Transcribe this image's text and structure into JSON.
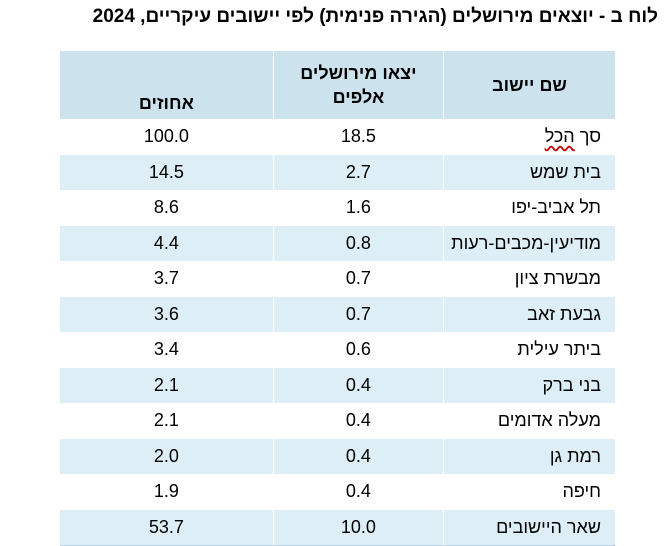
{
  "title": "לוח ב - יוצאים מירושלים (הגירה פנימית) לפי יישובים עיקריים, 2024",
  "table": {
    "headers": {
      "name": "שם יישוב",
      "thousands_line1": "יצאו מירושלים",
      "thousands_line2": "אלפים",
      "percent": "אחוזים"
    },
    "total_row": {
      "name_prefix": "סך",
      "name_sum": "הכל",
      "thousands": "18.5",
      "percent": "100.0"
    },
    "rows": [
      {
        "name": "בית שמש",
        "thousands": "2.7",
        "percent": "14.5"
      },
      {
        "name": "תל אביב-יפו",
        "thousands": "1.6",
        "percent": "8.6"
      },
      {
        "name": "מודיעין-מכבים-רעות",
        "thousands": "0.8",
        "percent": "4.4"
      },
      {
        "name": "מבשרת ציון",
        "thousands": "0.7",
        "percent": "3.7"
      },
      {
        "name": "גבעת זאב",
        "thousands": "0.7",
        "percent": "3.6"
      },
      {
        "name": "ביתר עילית",
        "thousands": "0.6",
        "percent": "3.4"
      },
      {
        "name": "בני ברק",
        "thousands": "0.4",
        "percent": "2.1"
      },
      {
        "name": "מעלה אדומים",
        "thousands": "0.4",
        "percent": "2.1"
      },
      {
        "name": "רמת גן",
        "thousands": "0.4",
        "percent": "2.0"
      },
      {
        "name": "חיפה",
        "thousands": "0.4",
        "percent": "1.9"
      },
      {
        "name": "שאר היישובים",
        "thousands": "10.0",
        "percent": "53.7"
      }
    ]
  },
  "colors": {
    "header_bg": "#cce3ee",
    "stripe_bg": "#ddeef6",
    "spell_underline": "#c00000"
  }
}
